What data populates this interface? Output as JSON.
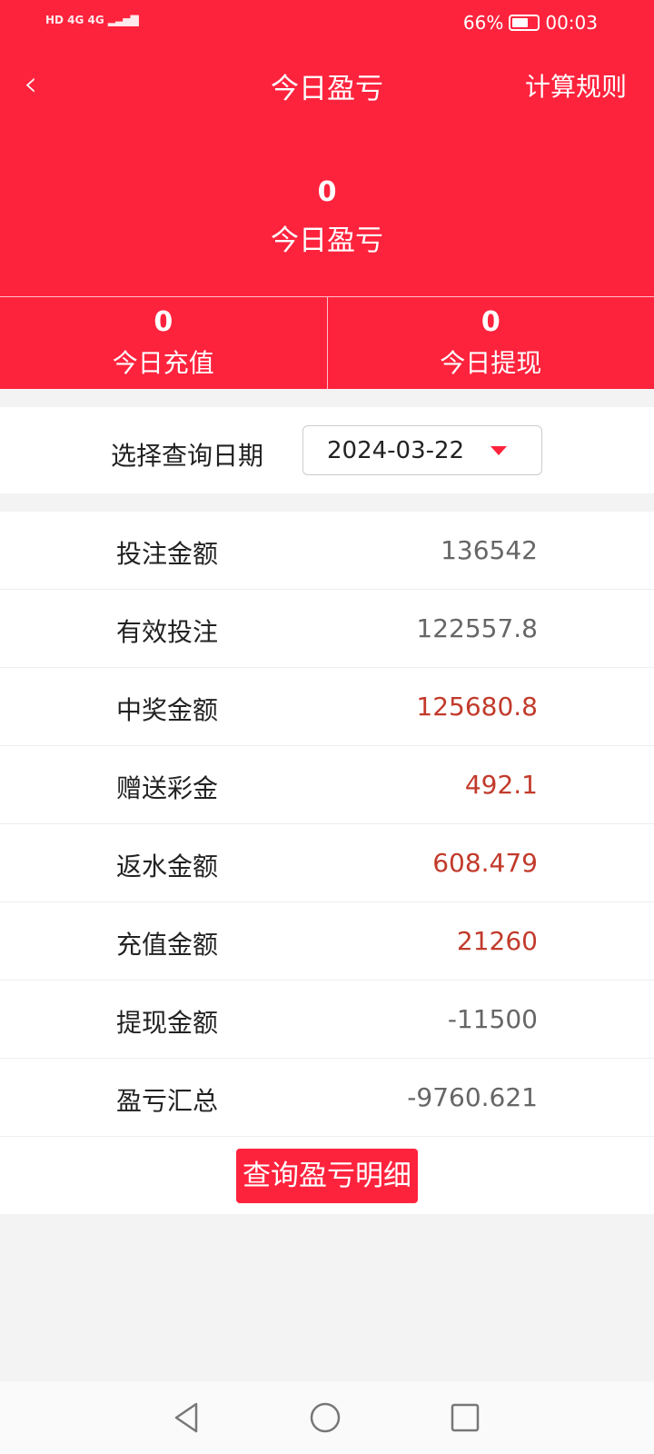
{
  "status_bar": {
    "signal": "HD 4G 4G",
    "battery": "66%",
    "battery_level": 0.66,
    "time": "00:03"
  },
  "header": {
    "title": "今日盈亏",
    "rules": "计算规则"
  },
  "hero": {
    "value": "0",
    "label": "今日盈亏"
  },
  "sub": [
    {
      "value": "0",
      "label": "今日充值"
    },
    {
      "value": "0",
      "label": "今日提现"
    }
  ],
  "date": {
    "label": "选择查询日期",
    "value": "2024-03-22"
  },
  "rows": [
    {
      "label": "投注金额",
      "value": "136542",
      "highlight": false
    },
    {
      "label": "有效投注",
      "value": "122557.8",
      "highlight": false
    },
    {
      "label": "中奖金额",
      "value": "125680.8",
      "highlight": true
    },
    {
      "label": "赠送彩金",
      "value": "492.1",
      "highlight": true
    },
    {
      "label": "返水金额",
      "value": "608.479",
      "highlight": true
    },
    {
      "label": "充值金额",
      "value": "21260",
      "highlight": true
    },
    {
      "label": "提现金额",
      "value": "-11500",
      "highlight": false
    },
    {
      "label": "盈亏汇总",
      "value": "-9760.621",
      "highlight": false
    }
  ],
  "button": "查询盈亏明细",
  "colors": {
    "brand": "#fe233d",
    "highlight_value": "#c23a2b"
  }
}
